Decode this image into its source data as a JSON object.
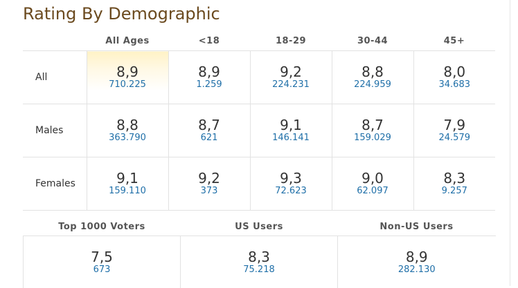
{
  "title": "Rating By Demographic",
  "columns": [
    "All Ages",
    "<18",
    "18-29",
    "30-44",
    "45+"
  ],
  "rows": [
    {
      "label": "All",
      "cells": [
        {
          "rating": "8,9",
          "votes": "710.225"
        },
        {
          "rating": "8,9",
          "votes": "1.259"
        },
        {
          "rating": "9,2",
          "votes": "224.231"
        },
        {
          "rating": "8,8",
          "votes": "224.959"
        },
        {
          "rating": "8,0",
          "votes": "34.683"
        }
      ]
    },
    {
      "label": "Males",
      "cells": [
        {
          "rating": "8,8",
          "votes": "363.790"
        },
        {
          "rating": "8,7",
          "votes": "621"
        },
        {
          "rating": "9,1",
          "votes": "146.141"
        },
        {
          "rating": "8,7",
          "votes": "159.029"
        },
        {
          "rating": "7,9",
          "votes": "24.579"
        }
      ]
    },
    {
      "label": "Females",
      "cells": [
        {
          "rating": "9,1",
          "votes": "159.110"
        },
        {
          "rating": "9,2",
          "votes": "373"
        },
        {
          "rating": "9,3",
          "votes": "72.623"
        },
        {
          "rating": "9,0",
          "votes": "62.097"
        },
        {
          "rating": "8,3",
          "votes": "9.257"
        }
      ]
    }
  ],
  "summary": {
    "headers": [
      "Top 1000 Voters",
      "US Users",
      "Non-US Users"
    ],
    "cells": [
      {
        "rating": "7,5",
        "votes": "673"
      },
      {
        "rating": "8,3",
        "votes": "75.218"
      },
      {
        "rating": "8,9",
        "votes": "282.130"
      }
    ]
  },
  "colors": {
    "title": "#6b4a1f",
    "votes_link": "#1f6fa8",
    "highlight": "#fff2c6"
  }
}
